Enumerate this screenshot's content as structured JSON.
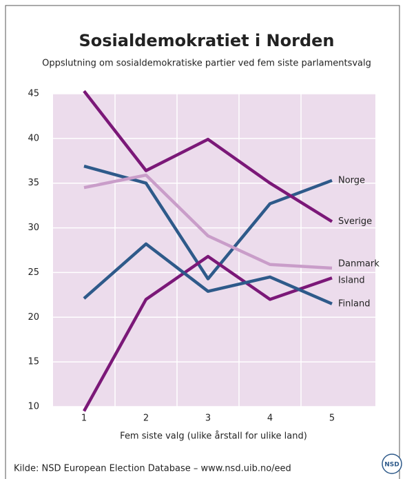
{
  "chart_data": {
    "type": "line",
    "title": "Sosialdemokratiet i Norden",
    "subtitle": "Oppslutning om sosialdemokratiske partier ved fem siste parlamentsvalg",
    "x_label": "Fem siste valg (ulike årstall for ulike land)",
    "source": "Kilde: NSD European Election Database – www.nsd.uib.no/eed",
    "logo": "NSD",
    "x": [
      1,
      2,
      3,
      4,
      5
    ],
    "xlim": [
      0.5,
      5.7
    ],
    "xticks": [
      1,
      2,
      3,
      4,
      5
    ],
    "ylim": [
      10,
      45
    ],
    "yticks": [
      10,
      15,
      20,
      25,
      30,
      35,
      40,
      45
    ],
    "grid": true,
    "background": "#ecdcec",
    "series": [
      {
        "name": "Norge",
        "color": "#2e5a8a",
        "values": [
          36.9,
          35.0,
          24.3,
          32.7,
          35.3
        ]
      },
      {
        "name": "Sverige",
        "color": "#7b1878",
        "values": [
          45.3,
          36.4,
          39.9,
          35.0,
          30.7
        ]
      },
      {
        "name": "Danmark",
        "color": "#c99dc9",
        "values": [
          34.5,
          35.9,
          29.1,
          25.9,
          25.5
        ]
      },
      {
        "name": "Island",
        "color": "#7b1878",
        "values": [
          9.5,
          22.0,
          26.8,
          22.0,
          24.4
        ]
      },
      {
        "name": "Finland",
        "color": "#2e5a8a",
        "values": [
          22.1,
          28.2,
          22.9,
          24.5,
          21.5
        ]
      }
    ]
  }
}
